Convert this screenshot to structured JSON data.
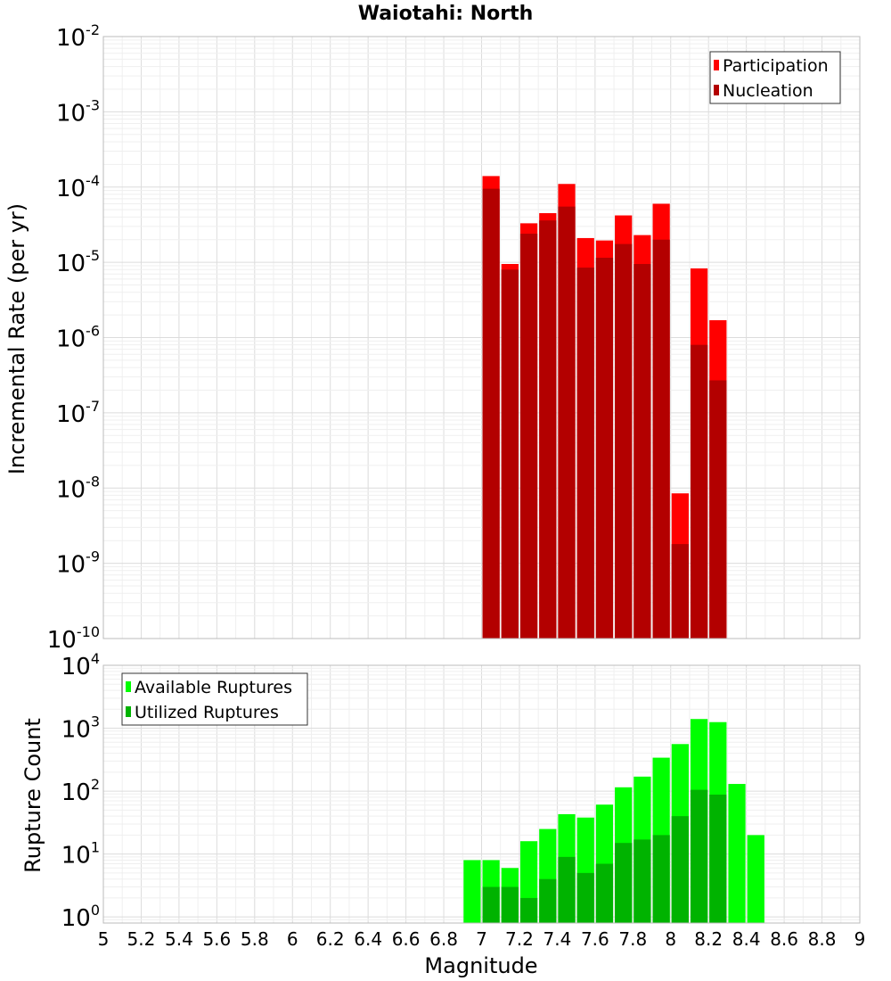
{
  "colors": {
    "participation": "#ff0000",
    "nucleation": "#b30000",
    "available": "#00ff00",
    "utilized": "#00b300",
    "grid_major": "#dcdcdc",
    "grid_minor": "#efefef",
    "frame": "#bbbbbb"
  },
  "chart_data": {
    "title": "Waiotahi: North",
    "xlabel": "Magnitude",
    "xlim": [
      5,
      9
    ],
    "x_ticks": [
      "5",
      "5.2",
      "5.4",
      "5.6",
      "5.8",
      "6",
      "6.2",
      "6.4",
      "6.6",
      "6.8",
      "7",
      "7.2",
      "7.4",
      "7.6",
      "7.8",
      "8",
      "8.2",
      "8.4",
      "8.6",
      "8.8",
      "9"
    ],
    "bin_width": 0.1,
    "panels": [
      {
        "type": "bar",
        "ylabel": "Incremental Rate (per yr)",
        "yscale": "log",
        "ylim": [
          1e-10,
          0.01
        ],
        "y_ticks": [
          {
            "base": "10",
            "exp": "-10"
          },
          {
            "base": "10",
            "exp": "-9"
          },
          {
            "base": "10",
            "exp": "-8"
          },
          {
            "base": "10",
            "exp": "-7"
          },
          {
            "base": "10",
            "exp": "-6"
          },
          {
            "base": "10",
            "exp": "-5"
          },
          {
            "base": "10",
            "exp": "-4"
          },
          {
            "base": "10",
            "exp": "-3"
          },
          {
            "base": "10",
            "exp": "-2"
          }
        ],
        "legend_position": "top-right",
        "x": [
          7.05,
          7.15,
          7.25,
          7.35,
          7.45,
          7.55,
          7.65,
          7.75,
          7.85,
          7.95,
          8.05,
          8.15,
          8.25
        ],
        "series": [
          {
            "name": "Participation",
            "values": [
              0.00014,
              9.5e-06,
              3.3e-05,
              4.5e-05,
              0.00011,
              2.1e-05,
              1.95e-05,
              4.2e-05,
              2.3e-05,
              6e-05,
              8.5e-09,
              8.3e-06,
              1.7e-06
            ]
          },
          {
            "name": "Nucleation",
            "values": [
              9.5e-05,
              8e-06,
              2.4e-05,
              3.6e-05,
              5.5e-05,
              8.5e-06,
              1.15e-05,
              1.75e-05,
              9.5e-06,
              2e-05,
              1.8e-09,
              8e-07,
              2.7e-07
            ]
          }
        ]
      },
      {
        "type": "bar",
        "ylabel": "Rupture Count",
        "yscale": "log",
        "ylim": [
          0.8,
          10000
        ],
        "y_ticks": [
          {
            "base": "10",
            "exp": "0",
            "value": 1
          },
          {
            "base": "10",
            "exp": "1",
            "value": 10
          },
          {
            "base": "10",
            "exp": "2",
            "value": 100
          },
          {
            "base": "10",
            "exp": "3",
            "value": 1000
          },
          {
            "base": "10",
            "exp": "4",
            "value": 10000
          }
        ],
        "legend_position": "top-left",
        "x": [
          6.95,
          7.05,
          7.15,
          7.25,
          7.35,
          7.45,
          7.55,
          7.65,
          7.75,
          7.85,
          7.95,
          8.05,
          8.15,
          8.25,
          8.35,
          8.45
        ],
        "series": [
          {
            "name": "Available Ruptures",
            "values": [
              8,
              8,
              6,
              16,
              25,
              43,
              38,
              61,
              115,
              170,
              340,
              560,
              1400,
              1250,
              130,
              20
            ]
          },
          {
            "name": "Utilized Ruptures",
            "values": [
              0,
              3,
              3,
              2,
              4,
              9,
              5,
              7,
              15,
              17,
              20,
              40,
              105,
              88,
              0,
              0
            ]
          }
        ]
      }
    ]
  }
}
